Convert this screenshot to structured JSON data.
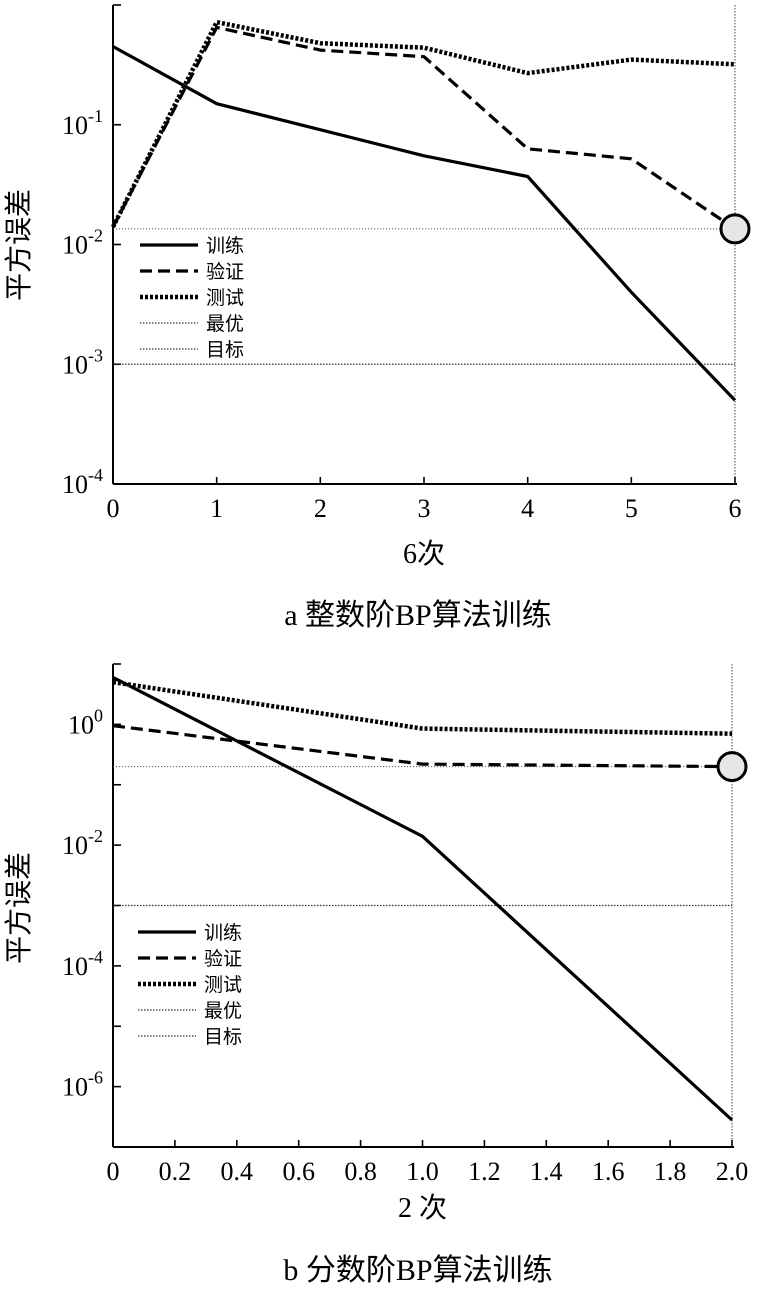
{
  "chart_data": [
    {
      "type": "line",
      "caption": "a 整数阶BP算法训练",
      "xlabel": "6次",
      "ylabel": "平方误差",
      "yscale": "log",
      "xlim": [
        0,
        6
      ],
      "ylim_exp": [
        -4,
        0
      ],
      "xticks": [
        "0",
        "1",
        "2",
        "3",
        "4",
        "5",
        "6"
      ],
      "yticks": [
        {
          "base": "10",
          "exp": "-1",
          "value": -1
        },
        {
          "base": "10",
          "exp": "-2",
          "value": -2
        },
        {
          "base": "10",
          "exp": "-3",
          "value": -3
        },
        {
          "base": "10",
          "exp": "-4",
          "value": -4
        }
      ],
      "series": [
        {
          "name": "训练",
          "style": "solid",
          "x": [
            0,
            1,
            3,
            4,
            5,
            6
          ],
          "y": [
            0.45,
            0.15,
            0.055,
            0.037,
            0.004,
            0.0005
          ]
        },
        {
          "name": "验证",
          "style": "dashed",
          "x": [
            0,
            1,
            2,
            3,
            4,
            5,
            6
          ],
          "y": [
            0.014,
            0.65,
            0.42,
            0.37,
            0.063,
            0.052,
            0.0135
          ]
        },
        {
          "name": "测试",
          "style": "dotted-thick",
          "x": [
            0,
            1,
            2,
            3,
            4,
            5,
            6
          ],
          "y": [
            0.014,
            0.72,
            0.48,
            0.44,
            0.27,
            0.35,
            0.32
          ]
        }
      ],
      "legend": [
        {
          "label": "训练",
          "style": "solid"
        },
        {
          "label": "验证",
          "style": "dashed"
        },
        {
          "label": "测试",
          "style": "dotted-thick"
        },
        {
          "label": "最优",
          "style": "dotted-thin"
        },
        {
          "label": "目标",
          "style": "dotted-thin"
        }
      ],
      "best": {
        "x": 6,
        "y": 0.0135
      },
      "goal": 0.001
    },
    {
      "type": "line",
      "caption": "b 分数阶BP算法训练",
      "xlabel": "2 次",
      "ylabel": "平方误差",
      "yscale": "log",
      "xlim": [
        0,
        2
      ],
      "ylim_exp": [
        -7,
        1
      ],
      "xticks": [
        "0",
        "0.2",
        "0.4",
        "0.6",
        "0.8",
        "1.0",
        "1.2",
        "1.4",
        "1.6",
        "1.8",
        "2.0"
      ],
      "yticks": [
        {
          "base": "10",
          "exp": "0",
          "value": 0
        },
        {
          "base": "10",
          "exp": "-2",
          "value": -2
        },
        {
          "base": "10",
          "exp": "-4",
          "value": -4
        },
        {
          "base": "10",
          "exp": "-6",
          "value": -6
        }
      ],
      "series": [
        {
          "name": "训练",
          "style": "solid",
          "x": [
            0,
            1,
            2
          ],
          "y": [
            6,
            0.014,
            2.8e-07
          ]
        },
        {
          "name": "验证",
          "style": "dashed",
          "x": [
            0,
            1,
            2
          ],
          "y": [
            0.95,
            0.22,
            0.2
          ]
        },
        {
          "name": "测试",
          "style": "dotted-thick",
          "x": [
            0,
            1,
            2
          ],
          "y": [
            5,
            0.85,
            0.7
          ]
        }
      ],
      "legend": [
        {
          "label": "训练",
          "style": "solid"
        },
        {
          "label": "验证",
          "style": "dashed"
        },
        {
          "label": "测试",
          "style": "dotted-thick"
        },
        {
          "label": "最优",
          "style": "dotted-thin"
        },
        {
          "label": "目标",
          "style": "dotted-thin"
        }
      ],
      "best": {
        "x": 2,
        "y": 0.2
      },
      "goal": 0.001
    }
  ]
}
